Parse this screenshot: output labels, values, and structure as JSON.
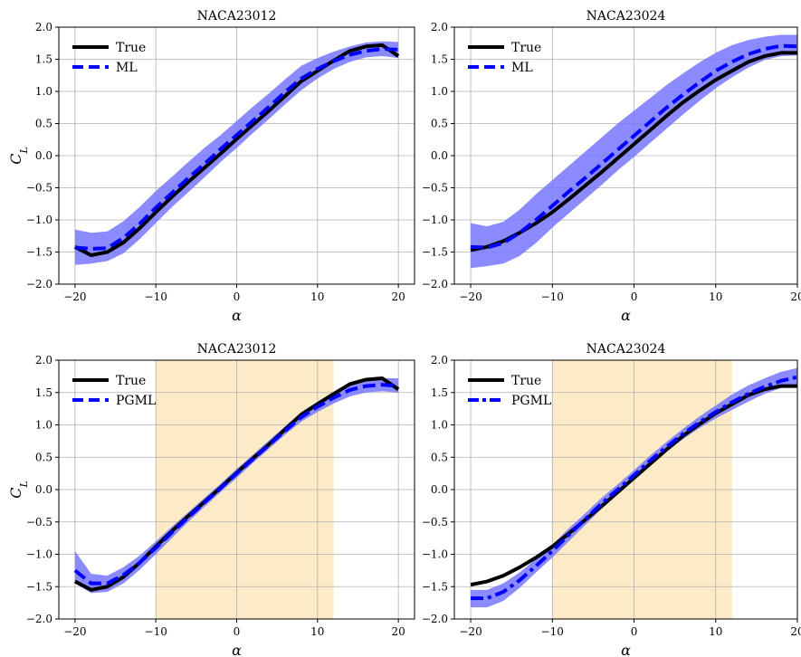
{
  "chart_data": [
    {
      "type": "line",
      "title": "NACA23012",
      "xlabel": "α",
      "ylabel": "C_L",
      "xlim": [
        -22,
        22
      ],
      "ylim": [
        -2.0,
        2.0
      ],
      "xticks": [
        -20,
        -10,
        0,
        10,
        20
      ],
      "xtick_labels": [
        "−20",
        "−10",
        "0",
        "10",
        "20"
      ],
      "yticks": [
        -2.0,
        -1.5,
        -1.0,
        -0.5,
        0.0,
        0.5,
        1.0,
        1.5,
        2.0
      ],
      "ytick_labels": [
        "−2.0",
        "−1.5",
        "−1.0",
        "−0.5",
        "0.0",
        "0.5",
        "1.0",
        "1.5",
        "2.0"
      ],
      "grid": true,
      "legend_position": "upper-left",
      "shaded_region": null,
      "x": [
        -20,
        -18,
        -16,
        -14,
        -12,
        -10,
        -8,
        -6,
        -4,
        -2,
        0,
        2,
        4,
        6,
        8,
        10,
        12,
        14,
        16,
        18,
        20
      ],
      "series": [
        {
          "name": "True",
          "style": "solid",
          "values": [
            -1.42,
            -1.55,
            -1.5,
            -1.35,
            -1.13,
            -0.88,
            -0.64,
            -0.41,
            -0.19,
            0.03,
            0.26,
            0.48,
            0.7,
            0.93,
            1.16,
            1.32,
            1.48,
            1.63,
            1.7,
            1.72,
            1.55
          ]
        },
        {
          "name": "ML",
          "style": "dashed",
          "values": [
            -1.43,
            -1.45,
            -1.44,
            -1.28,
            -1.06,
            -0.81,
            -0.58,
            -0.35,
            -0.13,
            0.1,
            0.32,
            0.54,
            0.76,
            0.99,
            1.2,
            1.35,
            1.47,
            1.57,
            1.63,
            1.66,
            1.65
          ]
        }
      ],
      "band": {
        "lower": [
          -1.7,
          -1.68,
          -1.64,
          -1.52,
          -1.3,
          -1.05,
          -0.8,
          -0.57,
          -0.34,
          -0.1,
          0.12,
          0.35,
          0.57,
          0.8,
          1.02,
          1.2,
          1.35,
          1.46,
          1.53,
          1.55,
          1.52
        ],
        "upper": [
          -1.15,
          -1.2,
          -1.18,
          -1.02,
          -0.8,
          -0.55,
          -0.33,
          -0.1,
          0.12,
          0.32,
          0.54,
          0.76,
          0.97,
          1.19,
          1.4,
          1.52,
          1.62,
          1.7,
          1.76,
          1.78,
          1.77
        ]
      }
    },
    {
      "type": "line",
      "title": "NACA23024",
      "xlabel": "α",
      "ylabel": "",
      "xlim": [
        -22,
        20
      ],
      "ylim": [
        -2.0,
        2.0
      ],
      "xticks": [
        -20,
        -10,
        0,
        10,
        20
      ],
      "xtick_labels": [
        "−20",
        "−10",
        "0",
        "10",
        "20"
      ],
      "yticks": [
        -2.0,
        -1.5,
        -1.0,
        -0.5,
        0.0,
        0.5,
        1.0,
        1.5,
        2.0
      ],
      "ytick_labels": [
        "−2.0",
        "−1.5",
        "−1.0",
        "−0.5",
        "0.0",
        "0.5",
        "1.0",
        "1.5",
        "2.0"
      ],
      "grid": true,
      "legend_position": "upper-left",
      "shaded_region": null,
      "x": [
        -20,
        -18,
        -16,
        -14,
        -12,
        -10,
        -8,
        -6,
        -4,
        -2,
        0,
        2,
        4,
        6,
        8,
        10,
        12,
        14,
        16,
        18,
        20
      ],
      "series": [
        {
          "name": "True",
          "style": "solid",
          "values": [
            -1.47,
            -1.42,
            -1.33,
            -1.2,
            -1.05,
            -0.88,
            -0.68,
            -0.47,
            -0.26,
            -0.04,
            0.18,
            0.4,
            0.62,
            0.83,
            1.01,
            1.18,
            1.32,
            1.46,
            1.55,
            1.6,
            1.6
          ]
        },
        {
          "name": "ML",
          "style": "dashed",
          "values": [
            -1.42,
            -1.43,
            -1.36,
            -1.2,
            -1.0,
            -0.78,
            -0.56,
            -0.35,
            -0.13,
            0.09,
            0.31,
            0.53,
            0.75,
            0.95,
            1.14,
            1.32,
            1.46,
            1.58,
            1.66,
            1.71,
            1.7
          ]
        }
      ],
      "band": {
        "lower": [
          -1.75,
          -1.72,
          -1.68,
          -1.56,
          -1.36,
          -1.12,
          -0.9,
          -0.68,
          -0.46,
          -0.23,
          -0.02,
          0.2,
          0.42,
          0.64,
          0.85,
          1.05,
          1.22,
          1.37,
          1.49,
          1.55,
          1.56
        ],
        "upper": [
          -1.05,
          -1.1,
          -1.03,
          -0.84,
          -0.6,
          -0.38,
          -0.16,
          0.06,
          0.28,
          0.5,
          0.7,
          0.9,
          1.1,
          1.28,
          1.45,
          1.6,
          1.72,
          1.8,
          1.85,
          1.88,
          1.88
        ]
      }
    },
    {
      "type": "line",
      "title": "NACA23012",
      "xlabel": "α",
      "ylabel": "C_L",
      "xlim": [
        -22,
        22
      ],
      "ylim": [
        -2.0,
        2.0
      ],
      "xticks": [
        -20,
        -10,
        0,
        10,
        20
      ],
      "xtick_labels": [
        "−20",
        "−10",
        "0",
        "10",
        "20"
      ],
      "yticks": [
        -2.0,
        -1.5,
        -1.0,
        -0.5,
        0.0,
        0.5,
        1.0,
        1.5,
        2.0
      ],
      "ytick_labels": [
        "−2.0",
        "−1.5",
        "−1.0",
        "−0.5",
        "0.0",
        "0.5",
        "1.0",
        "1.5",
        "2.0"
      ],
      "grid": true,
      "legend_position": "upper-left",
      "shaded_region": [
        -10,
        12
      ],
      "x": [
        -20,
        -18,
        -16,
        -14,
        -12,
        -10,
        -8,
        -6,
        -4,
        -2,
        0,
        2,
        4,
        6,
        8,
        10,
        12,
        14,
        16,
        18,
        20
      ],
      "series": [
        {
          "name": "True",
          "style": "solid",
          "values": [
            -1.42,
            -1.55,
            -1.5,
            -1.35,
            -1.13,
            -0.88,
            -0.64,
            -0.41,
            -0.19,
            0.03,
            0.26,
            0.48,
            0.7,
            0.93,
            1.16,
            1.32,
            1.48,
            1.63,
            1.7,
            1.72,
            1.55
          ]
        },
        {
          "name": "PGML",
          "style": "dashed",
          "values": [
            -1.25,
            -1.45,
            -1.45,
            -1.32,
            -1.13,
            -0.9,
            -0.66,
            -0.43,
            -0.2,
            0.02,
            0.25,
            0.47,
            0.69,
            0.91,
            1.12,
            1.28,
            1.42,
            1.54,
            1.6,
            1.62,
            1.6
          ]
        }
      ],
      "band": {
        "lower": [
          -1.45,
          -1.6,
          -1.58,
          -1.45,
          -1.24,
          -1.0,
          -0.75,
          -0.5,
          -0.27,
          -0.04,
          0.18,
          0.41,
          0.63,
          0.85,
          1.05,
          1.2,
          1.33,
          1.44,
          1.5,
          1.52,
          1.5
        ],
        "upper": [
          -0.95,
          -1.3,
          -1.33,
          -1.2,
          -1.02,
          -0.8,
          -0.57,
          -0.35,
          -0.13,
          0.09,
          0.32,
          0.54,
          0.76,
          0.98,
          1.2,
          1.36,
          1.51,
          1.63,
          1.7,
          1.72,
          1.72
        ]
      }
    },
    {
      "type": "line",
      "title": "NACA23024",
      "xlabel": "α",
      "ylabel": "",
      "xlim": [
        -22,
        20
      ],
      "ylim": [
        -2.0,
        2.0
      ],
      "xticks": [
        -20,
        -10,
        0,
        10,
        20
      ],
      "xtick_labels": [
        "−20",
        "−10",
        "0",
        "10",
        "20"
      ],
      "yticks": [
        -2.0,
        -1.5,
        -1.0,
        -0.5,
        0.0,
        0.5,
        1.0,
        1.5,
        2.0
      ],
      "ytick_labels": [
        "−2.0",
        "−1.5",
        "−1.0",
        "−0.5",
        "0.0",
        "0.5",
        "1.0",
        "1.5",
        "2.0"
      ],
      "grid": true,
      "legend_position": "upper-left",
      "shaded_region": [
        -10,
        12
      ],
      "x": [
        -20,
        -18,
        -16,
        -14,
        -12,
        -10,
        -8,
        -6,
        -4,
        -2,
        0,
        2,
        4,
        6,
        8,
        10,
        12,
        14,
        16,
        18,
        20
      ],
      "series": [
        {
          "name": "True",
          "style": "solid",
          "values": [
            -1.47,
            -1.42,
            -1.33,
            -1.2,
            -1.05,
            -0.88,
            -0.68,
            -0.47,
            -0.26,
            -0.04,
            0.18,
            0.4,
            0.62,
            0.83,
            1.01,
            1.18,
            1.32,
            1.46,
            1.55,
            1.6,
            1.6
          ]
        },
        {
          "name": "PGML",
          "style": "dashdot",
          "values": [
            -1.68,
            -1.68,
            -1.58,
            -1.4,
            -1.18,
            -0.95,
            -0.7,
            -0.46,
            -0.22,
            0.0,
            0.22,
            0.45,
            0.66,
            0.86,
            1.04,
            1.2,
            1.35,
            1.48,
            1.59,
            1.68,
            1.74
          ]
        }
      ],
      "band": {
        "lower": [
          -1.82,
          -1.82,
          -1.72,
          -1.52,
          -1.28,
          -1.05,
          -0.8,
          -0.55,
          -0.3,
          -0.07,
          0.15,
          0.38,
          0.59,
          0.78,
          0.95,
          1.1,
          1.23,
          1.36,
          1.48,
          1.57,
          1.62
        ],
        "upper": [
          -1.55,
          -1.55,
          -1.45,
          -1.28,
          -1.07,
          -0.85,
          -0.6,
          -0.37,
          -0.13,
          0.08,
          0.3,
          0.53,
          0.74,
          0.94,
          1.13,
          1.3,
          1.47,
          1.61,
          1.72,
          1.82,
          1.88
        ]
      }
    }
  ],
  "colors": {
    "true_line": "#000000",
    "model_line": "#0000ff",
    "band_fill": "#7777ff",
    "shade_fill": "#fdebc8",
    "grid": "#b0b0b0"
  }
}
